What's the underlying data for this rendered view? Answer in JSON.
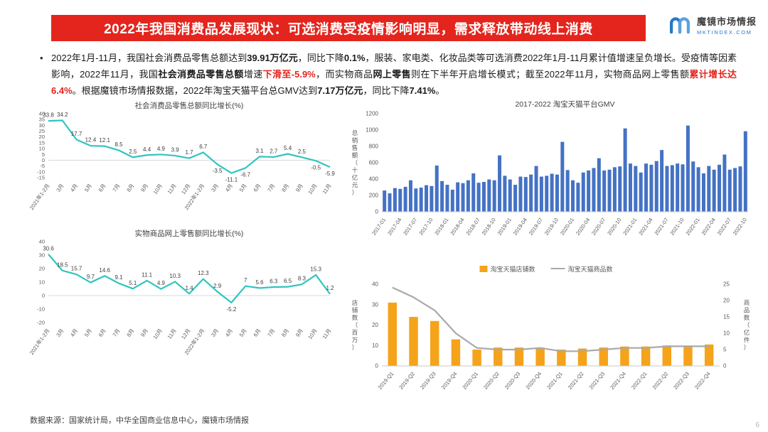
{
  "header": {
    "title": "2022年我国消费品发展现状：可选消费受疫情影响明显，需求释放带动线上消费",
    "logo": {
      "brand": "魔镜市场情报",
      "domain": "MKTINDEX.COM"
    }
  },
  "bullet": {
    "marker": "•",
    "runs": [
      {
        "text": "2022年1月-11月，我国社会消费品零售总额达到"
      },
      {
        "text": "39.91万亿元",
        "bold": true
      },
      {
        "text": "，同比下降"
      },
      {
        "text": "0.1%",
        "bold": true
      },
      {
        "text": "，服装、家电类、化妆品类等可选消费2022年1月-11月累计值增速呈负增长。受疫情等因素影响，2022年11月，我国"
      },
      {
        "text": "社会消费品零售总额",
        "bold": true
      },
      {
        "text": "增速"
      },
      {
        "text": "下滑至-5.9%",
        "bold": true,
        "color": "#e3251d"
      },
      {
        "text": "，而实物商品"
      },
      {
        "text": "网上零售",
        "bold": true
      },
      {
        "text": "则在下半年开启增长模式；截至2022年11月，实物商品网上零售额"
      },
      {
        "text": "累计增长达6.4%",
        "bold": true,
        "color": "#e3251d"
      },
      {
        "text": "。根据魔镜市场情报数据，2022年淘宝天猫平台总GMV达到"
      },
      {
        "text": "7.17万亿元",
        "bold": true
      },
      {
        "text": "，同比下降"
      },
      {
        "text": "7.41%",
        "bold": true
      },
      {
        "text": "。"
      }
    ]
  },
  "chart_data": [
    {
      "type": "line",
      "title": "社会消费品零售总额同比增长(%)",
      "categories": [
        "2021年1-2月",
        "3月",
        "4月",
        "5月",
        "6月",
        "7月",
        "8月",
        "9月",
        "10月",
        "11月",
        "12月",
        "2022年1-2月",
        "3月",
        "4月",
        "5月",
        "6月",
        "7月",
        "8月",
        "9月",
        "10月",
        "11月"
      ],
      "values": [
        33.8,
        34.2,
        17.7,
        12.4,
        12.1,
        8.5,
        2.5,
        4.4,
        4.9,
        3.9,
        1.7,
        6.7,
        -3.5,
        -11.1,
        -6.7,
        3.1,
        2.7,
        5.4,
        2.5,
        -0.5,
        -5.9
      ],
      "ylim": [
        -15,
        40
      ],
      "ystep": 5,
      "color": "#2fc5c0",
      "grid": false,
      "legend_position": "none"
    },
    {
      "type": "line",
      "title": "实物商品网上零售额同比增长(%)",
      "categories": [
        "2021年1-2月",
        "3月",
        "4月",
        "5月",
        "6月",
        "7月",
        "8月",
        "9月",
        "10月",
        "11月",
        "12月",
        "2022年1-2月",
        "3月",
        "4月",
        "5月",
        "6月",
        "7月",
        "8月",
        "9月",
        "10月",
        "11月"
      ],
      "values": [
        30.6,
        18.5,
        15.7,
        9.7,
        14.6,
        9.1,
        5.1,
        11.1,
        4.9,
        10.3,
        1.4,
        12.3,
        2.9,
        -5.2,
        7,
        5.6,
        6.3,
        6.5,
        8.3,
        15.3,
        1.2
      ],
      "ylim": [
        -20,
        40
      ],
      "ystep": 10,
      "color": "#2fc5c0",
      "grid": false,
      "legend_position": "none"
    },
    {
      "type": "bar",
      "title": "2017-2022 淘宝天猫平台GMV",
      "ylabel": "总销售额（十亿元）",
      "x": [
        "2017-01",
        "2017-02",
        "2017-03",
        "2017-04",
        "2017-05",
        "2017-06",
        "2017-07",
        "2017-08",
        "2017-09",
        "2017-10",
        "2017-11",
        "2017-12",
        "2018-01",
        "2018-02",
        "2018-03",
        "2018-04",
        "2018-05",
        "2018-06",
        "2018-07",
        "2018-08",
        "2018-09",
        "2018-10",
        "2018-11",
        "2018-12",
        "2019-01",
        "2019-02",
        "2019-03",
        "2019-04",
        "2019-05",
        "2019-06",
        "2019-07",
        "2019-08",
        "2019-09",
        "2019-10",
        "2019-11",
        "2019-12",
        "2020-01",
        "2020-02",
        "2020-03",
        "2020-04",
        "2020-05",
        "2020-06",
        "2020-07",
        "2020-08",
        "2020-09",
        "2020-10",
        "2020-11",
        "2020-12",
        "2021-01",
        "2021-02",
        "2021-03",
        "2021-04",
        "2021-05",
        "2021-06",
        "2021-07",
        "2021-08",
        "2021-09",
        "2021-10",
        "2021-11",
        "2021-12",
        "2022-01",
        "2022-02",
        "2022-03",
        "2022-04",
        "2022-05",
        "2022-06",
        "2022-07",
        "2022-08",
        "2022-09",
        "2022-10"
      ],
      "values": [
        260,
        225,
        290,
        280,
        305,
        385,
        285,
        295,
        325,
        315,
        565,
        375,
        330,
        270,
        360,
        350,
        385,
        470,
        355,
        365,
        395,
        385,
        690,
        440,
        395,
        330,
        430,
        425,
        455,
        560,
        430,
        440,
        465,
        455,
        855,
        510,
        385,
        355,
        480,
        505,
        535,
        655,
        505,
        515,
        545,
        555,
        1020,
        590,
        560,
        480,
        590,
        575,
        620,
        755,
        560,
        570,
        590,
        580,
        1055,
        615,
        545,
        470,
        560,
        515,
        575,
        700,
        515,
        535,
        555,
        985
      ],
      "ylim": [
        0,
        1200
      ],
      "ystep": 200,
      "color": "#4472c4",
      "xtick_every": 3,
      "grid": false,
      "legend_position": "none"
    },
    {
      "type": "combo",
      "categories": [
        "2019-Q1",
        "2019-Q2",
        "2019-Q3",
        "2019-Q4",
        "2020-Q1",
        "2020-Q2",
        "2020-Q3",
        "2020-Q4",
        "2021-Q1",
        "2021-Q2",
        "2021-Q3",
        "2021-Q4",
        "2022-Q1",
        "2022-Q2",
        "2022-Q3",
        "2022-Q4"
      ],
      "series": [
        {
          "name": "淘宝天猫店铺数",
          "type": "bar",
          "axis": "left",
          "color": "#f5a31a",
          "values": [
            31,
            24,
            22,
            13,
            8,
            9,
            9,
            9,
            8,
            8.5,
            9,
            9.5,
            9.5,
            10,
            10,
            10.5
          ]
        },
        {
          "name": "淘宝天猫商品数",
          "type": "line",
          "axis": "right",
          "color": "#a9a9a9",
          "values": [
            24,
            21,
            17,
            10,
            5.5,
            5,
            5,
            5.5,
            4.5,
            4.5,
            5,
            5.5,
            5.5,
            6,
            6,
            6
          ]
        }
      ],
      "left_ylabel": "店铺数（百万）",
      "right_ylabel": "商品数（亿件）",
      "left_ylim": [
        0,
        40
      ],
      "left_ystep": 10,
      "right_ylim": [
        0,
        25
      ],
      "right_ystep": 5,
      "grid": false,
      "legend_position": "top"
    }
  ],
  "footer": {
    "source": "数据来源：国家统计局，中华全国商业信息中心，魔镜市场情报"
  },
  "page": {
    "number": "6"
  },
  "colors": {
    "banner_red": "#e3251d",
    "accent_red": "#e3251d",
    "teal_line": "#2fc5c0",
    "blue_bar": "#4472c4",
    "orange_bar": "#f5a31a",
    "gray_line": "#a9a9a9"
  }
}
